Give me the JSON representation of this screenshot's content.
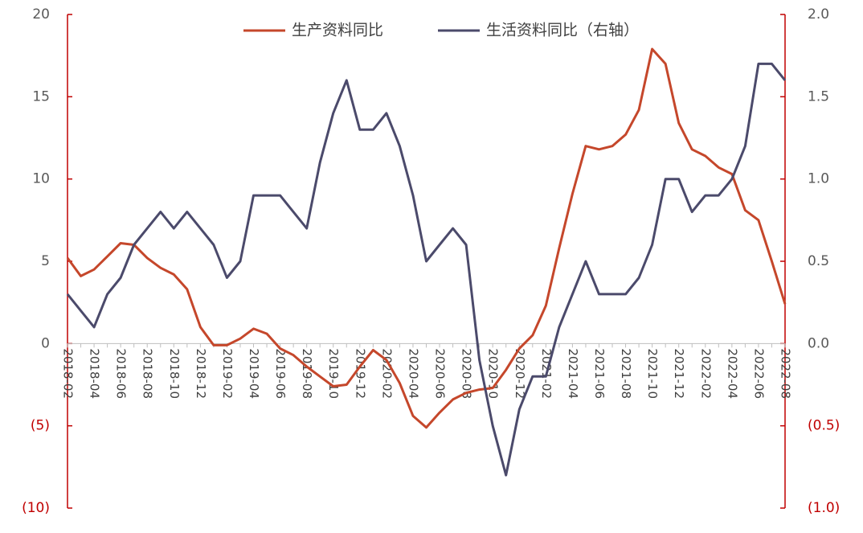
{
  "chart_data": {
    "type": "line",
    "categories": [
      "2018-02",
      null,
      "2018-04",
      null,
      "2018-06",
      null,
      "2018-08",
      null,
      "2018-10",
      null,
      "2018-12",
      null,
      "2019-02",
      null,
      "2019-04",
      null,
      "2019-06",
      null,
      "2019-08",
      null,
      "2019-10",
      null,
      "2019-12",
      null,
      "2020-02",
      null,
      "2020-04",
      null,
      "2020-06",
      null,
      "2020-08",
      null,
      "2020-10",
      null,
      "2020-12",
      null,
      "2021-02",
      null,
      "2021-04",
      null,
      "2021-06",
      null,
      "2021-08",
      null,
      "2021-10",
      null,
      "2021-12",
      null,
      "2022-02",
      null,
      "2022-04",
      null,
      "2022-06",
      null,
      "2022-08"
    ],
    "series": [
      {
        "name": "生产资料同比",
        "color": "#c5472b",
        "axis": "y",
        "values": [
          5.2,
          4.1,
          4.5,
          5.3,
          6.1,
          6.0,
          5.2,
          4.6,
          4.2,
          3.3,
          1.0,
          -0.1,
          -0.1,
          0.3,
          0.9,
          0.6,
          -0.3,
          -0.7,
          -1.4,
          -2.0,
          -2.6,
          -2.5,
          -1.4,
          -0.4,
          -1.0,
          -2.4,
          -4.4,
          -5.1,
          -4.2,
          -3.4,
          -3.0,
          -2.8,
          -2.7,
          -1.6,
          -0.3,
          0.5,
          2.3,
          5.8,
          9.1,
          12.0,
          11.8,
          12.0,
          12.7,
          14.2,
          17.9,
          17.0,
          13.4,
          11.8,
          11.4,
          10.7,
          10.3,
          8.1,
          7.5,
          5.0,
          2.4
        ]
      },
      {
        "name": "生活资料同比（右轴）",
        "color": "#4b4a6b",
        "axis": "y2",
        "values": [
          0.3,
          0.2,
          0.1,
          0.3,
          0.4,
          0.6,
          0.7,
          0.8,
          0.7,
          0.8,
          0.7,
          0.6,
          0.4,
          0.5,
          0.9,
          0.9,
          0.9,
          0.8,
          0.7,
          1.1,
          1.4,
          1.6,
          1.3,
          1.3,
          1.4,
          1.2,
          0.9,
          0.5,
          0.6,
          0.7,
          0.6,
          -0.1,
          -0.5,
          -0.8,
          -0.4,
          -0.2,
          -0.2,
          0.1,
          0.3,
          0.5,
          0.3,
          0.3,
          0.3,
          0.4,
          0.6,
          1.0,
          1.0,
          0.8,
          0.9,
          0.9,
          1.0,
          1.2,
          1.7,
          1.7,
          1.6
        ]
      }
    ],
    "ylim": [
      -10,
      20
    ],
    "yticks": [
      {
        "value": -10,
        "label": "(10)"
      },
      {
        "value": -5,
        "label": "(5)"
      },
      0,
      5,
      10,
      15,
      20
    ],
    "y2lim": [
      -1.0,
      2.0
    ],
    "y2ticks": [
      {
        "value": -1.0,
        "label": "(1.0)"
      },
      {
        "value": -0.5,
        "label": "(0.5)"
      },
      {
        "value": 0,
        "label": "0.0"
      },
      {
        "value": 0.5,
        "label": "0.5"
      },
      {
        "value": 1.0,
        "label": "1.0"
      },
      {
        "value": 1.5,
        "label": "1.5"
      },
      {
        "value": 2.0,
        "label": "2.0"
      }
    ],
    "axis_color": "#c00000",
    "legend": "top"
  }
}
